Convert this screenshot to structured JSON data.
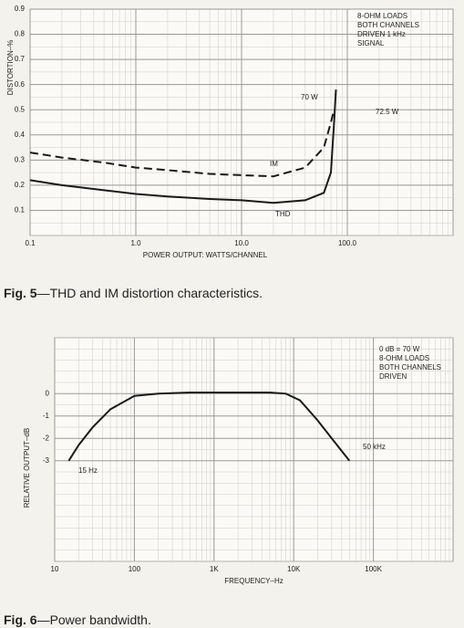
{
  "chart_data": [
    {
      "type": "line",
      "ylabel": "DISTORTION–%",
      "xlabel": "POWER OUTPUT: WATTS/CHANNEL",
      "caption_fig": "Fig. 5",
      "caption": "—THD and IM distortion characteristics.",
      "xscale": "log",
      "xlim": [
        0.1,
        1000
      ],
      "xticks": [
        0.1,
        {
          "value": 1,
          "label": "1.0"
        },
        {
          "value": 10,
          "label": "10.0"
        },
        {
          "value": 100,
          "label": "100.0"
        }
      ],
      "ylim": [
        0,
        0.9
      ],
      "yticks": [
        0.1,
        0.2,
        0.3,
        0.4,
        0.5,
        0.6,
        0.7,
        0.8,
        0.9
      ],
      "grid": true,
      "annotations": [
        "8-OHM LOADS",
        "BOTH CHANNELS",
        "DRIVEN 1 kHz",
        "SIGNAL",
        "70 W",
        "72.5 W"
      ],
      "series": [
        {
          "name": "THD",
          "color": "#1a1a1a",
          "dash": false,
          "x": [
            0.1,
            0.2,
            0.5,
            1,
            2,
            5,
            10,
            20,
            40,
            60,
            70,
            75,
            78
          ],
          "values": [
            0.22,
            0.2,
            0.18,
            0.165,
            0.155,
            0.145,
            0.14,
            0.13,
            0.14,
            0.17,
            0.25,
            0.45,
            0.58
          ]
        },
        {
          "name": "IM",
          "color": "#1a1a1a",
          "dash": true,
          "x": [
            0.1,
            0.2,
            0.5,
            1,
            2,
            5,
            10,
            20,
            40,
            60,
            70,
            75
          ],
          "values": [
            0.33,
            0.31,
            0.29,
            0.27,
            0.26,
            0.245,
            0.24,
            0.235,
            0.27,
            0.35,
            0.45,
            0.5
          ]
        }
      ]
    },
    {
      "type": "line",
      "ylabel": "RELATIVE OUTPUT–dB",
      "xlabel": "FREQUENCY–Hz",
      "caption_fig": "Fig. 6",
      "caption": "—Power bandwidth.",
      "xscale": "log",
      "xlim": [
        10,
        1000000
      ],
      "xticks": [
        10,
        100,
        {
          "value": 1000,
          "label": "1K"
        },
        {
          "value": 10000,
          "label": "10K"
        },
        {
          "value": 100000,
          "label": "100K"
        }
      ],
      "ylim": [
        -7.5,
        2.5
      ],
      "yticks": [
        0,
        -1,
        -2,
        -3
      ],
      "grid": true,
      "annotations": [
        "0 dB = 70 W",
        "8-OHM LOADS",
        "BOTH CHANNELS",
        "DRIVEN",
        "15 Hz",
        "50 kHz"
      ],
      "series": [
        {
          "name": "Power bandwidth",
          "color": "#1a1a1a",
          "dash": false,
          "x": [
            15,
            20,
            30,
            50,
            100,
            200,
            500,
            1000,
            5000,
            8000,
            12000,
            20000,
            30000,
            50000
          ],
          "values": [
            -3,
            -2.3,
            -1.5,
            -0.7,
            -0.1,
            0,
            0.05,
            0.05,
            0.05,
            0,
            -0.3,
            -1.2,
            -2,
            -3
          ]
        }
      ]
    }
  ]
}
